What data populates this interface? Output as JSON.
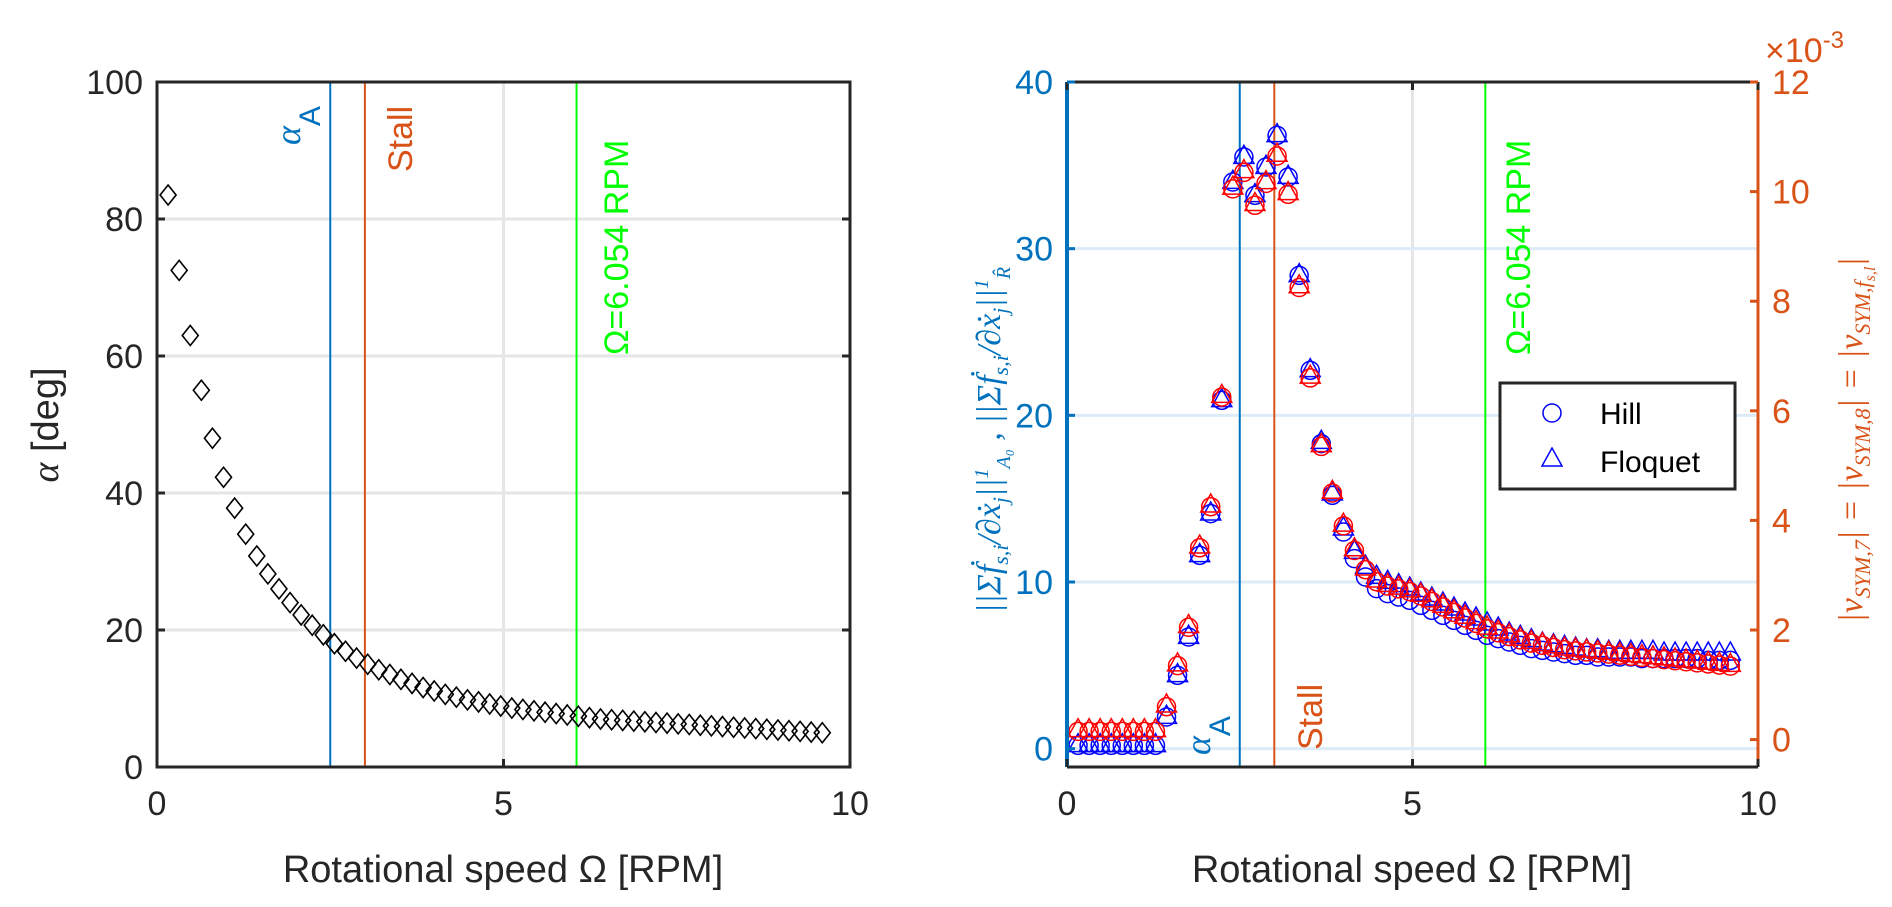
{
  "chart_data": [
    {
      "type": "scatter",
      "panel": "left",
      "title": "",
      "xlabel": "Rotational speed Ω [RPM]",
      "ylabel": "α [deg]",
      "xlim": [
        0,
        10
      ],
      "ylim": [
        0,
        100
      ],
      "xticks": [
        0,
        5,
        10
      ],
      "yticks": [
        0,
        20,
        40,
        60,
        80,
        100
      ],
      "grid": true,
      "marker": "diamond",
      "marker_color": "#000000",
      "series": [
        {
          "name": "alpha",
          "x": [
            0.16,
            0.32,
            0.48,
            0.64,
            0.8,
            0.96,
            1.12,
            1.28,
            1.44,
            1.6,
            1.76,
            1.92,
            2.08,
            2.24,
            2.4,
            2.56,
            2.72,
            2.88,
            3.04,
            3.2,
            3.36,
            3.52,
            3.68,
            3.84,
            4.0,
            4.16,
            4.32,
            4.48,
            4.64,
            4.8,
            4.96,
            5.12,
            5.28,
            5.44,
            5.6,
            5.76,
            5.92,
            6.08,
            6.24,
            6.4,
            6.56,
            6.72,
            6.88,
            7.04,
            7.2,
            7.36,
            7.52,
            7.68,
            7.84,
            8.0,
            8.16,
            8.32,
            8.48,
            8.64,
            8.8,
            8.96,
            9.12,
            9.28,
            9.44,
            9.6
          ],
          "y": [
            83.5,
            72.5,
            63.0,
            55.0,
            48.0,
            42.3,
            37.8,
            34.0,
            30.8,
            28.2,
            26.0,
            24.0,
            22.2,
            20.7,
            19.3,
            18.0,
            16.9,
            15.9,
            15.0,
            14.2,
            13.5,
            12.8,
            12.2,
            11.6,
            11.1,
            10.6,
            10.2,
            9.8,
            9.5,
            9.2,
            8.9,
            8.6,
            8.4,
            8.2,
            8.0,
            7.8,
            7.6,
            7.4,
            7.2,
            7.0,
            6.9,
            6.8,
            6.7,
            6.6,
            6.5,
            6.4,
            6.3,
            6.2,
            6.1,
            6.0,
            5.9,
            5.8,
            5.7,
            5.6,
            5.5,
            5.4,
            5.3,
            5.2,
            5.1,
            5.0
          ]
        }
      ],
      "vlines": [
        {
          "x": 2.5,
          "label": "α_A",
          "color": "#0072BD",
          "label_position": "top-left"
        },
        {
          "x": 3.0,
          "label": "Stall",
          "color": "#D95319",
          "label_position": "top-right"
        },
        {
          "x": 6.054,
          "label": "Ω=6.054 RPM",
          "color": "#00FF00",
          "label_position": "top-right"
        }
      ]
    },
    {
      "type": "scatter",
      "panel": "right",
      "title": "",
      "xlabel": "Rotational speed Ω [RPM]",
      "ylabel_left": "||Σ ḟ_s,i / ∂ẋ_j ||¹_A0 , ||Σ ḟ_s,i / ∂ẋ_j ||¹_R̂",
      "ylabel_right": "|v_SYM,7| = |v_SYM,8| = |v_SYM,f_s,l|",
      "right_axis_exponent": "×10⁻³",
      "xlim": [
        0,
        10
      ],
      "ylim_left": [
        -1.1,
        40
      ],
      "ylim_right": [
        -0.5,
        12
      ],
      "xticks": [
        0,
        5,
        10
      ],
      "yticks_left": [
        0,
        10,
        20,
        30,
        40
      ],
      "yticks_right": [
        0,
        2,
        4,
        6,
        8,
        10,
        12
      ],
      "grid": true,
      "legend": {
        "position": "right-middle",
        "entries": [
          {
            "label": "Hill",
            "marker": "circle"
          },
          {
            "label": "Floquet",
            "marker": "triangle"
          }
        ]
      },
      "series": [
        {
          "name": "Hill (left axis)",
          "axis": "left",
          "marker": "circle",
          "color": "#0000FF",
          "x": [
            0.16,
            0.32,
            0.48,
            0.64,
            0.8,
            0.96,
            1.12,
            1.28,
            1.44,
            1.6,
            1.76,
            1.92,
            2.08,
            2.24,
            2.4,
            2.56,
            2.72,
            2.88,
            3.04,
            3.2,
            3.36,
            3.52,
            3.68,
            3.84,
            4.0,
            4.16,
            4.32,
            4.48,
            4.64,
            4.8,
            4.96,
            5.12,
            5.28,
            5.44,
            5.6,
            5.76,
            5.92,
            6.08,
            6.24,
            6.4,
            6.56,
            6.72,
            6.88,
            7.04,
            7.2,
            7.36,
            7.52,
            7.68,
            7.84,
            8.0,
            8.16,
            8.32,
            8.48,
            8.64,
            8.8,
            8.96,
            9.12,
            9.28,
            9.44,
            9.6
          ],
          "y": [
            0.2,
            0.2,
            0.2,
            0.2,
            0.2,
            0.2,
            0.2,
            0.2,
            1.9,
            4.4,
            6.7,
            11.6,
            14.1,
            20.9,
            34.0,
            35.5,
            33.2,
            34.9,
            36.8,
            34.3,
            28.4,
            22.7,
            18.3,
            15.2,
            13.0,
            11.4,
            10.3,
            9.6,
            9.3,
            9.1,
            8.9,
            8.6,
            8.3,
            8.0,
            7.7,
            7.4,
            7.1,
            6.8,
            6.6,
            6.4,
            6.2,
            6.0,
            5.9,
            5.8,
            5.7,
            5.6,
            5.6,
            5.5,
            5.5,
            5.5,
            5.5,
            5.4,
            5.4,
            5.4,
            5.4,
            5.4,
            5.4,
            5.3,
            5.3,
            5.3
          ]
        },
        {
          "name": "Floquet (left axis)",
          "axis": "left",
          "marker": "triangle",
          "color": "#0000FF",
          "x": [
            0.16,
            0.32,
            0.48,
            0.64,
            0.8,
            0.96,
            1.12,
            1.28,
            1.44,
            1.6,
            1.76,
            1.92,
            2.08,
            2.24,
            2.4,
            2.56,
            2.72,
            2.88,
            3.04,
            3.2,
            3.36,
            3.52,
            3.68,
            3.84,
            4.0,
            4.16,
            4.32,
            4.48,
            4.64,
            4.8,
            4.96,
            5.12,
            5.28,
            5.44,
            5.6,
            5.76,
            5.92,
            6.08,
            6.24,
            6.4,
            6.56,
            6.72,
            6.88,
            7.04,
            7.2,
            7.36,
            7.52,
            7.68,
            7.84,
            8.0,
            8.16,
            8.32,
            8.48,
            8.64,
            8.8,
            8.96,
            9.12,
            9.28,
            9.44,
            9.6
          ],
          "y": [
            0.3,
            0.3,
            0.3,
            0.3,
            0.3,
            0.3,
            0.3,
            0.3,
            2.0,
            4.5,
            6.8,
            11.7,
            14.2,
            21.0,
            34.1,
            35.6,
            33.3,
            35.0,
            36.9,
            34.4,
            28.5,
            22.8,
            18.5,
            15.4,
            13.3,
            11.9,
            11.0,
            10.4,
            10.1,
            9.9,
            9.7,
            9.4,
            9.1,
            8.8,
            8.5,
            8.2,
            7.9,
            7.6,
            7.3,
            7.0,
            6.8,
            6.6,
            6.4,
            6.3,
            6.2,
            6.1,
            6.0,
            6.0,
            5.9,
            5.9,
            5.9,
            5.9,
            5.9,
            5.8,
            5.8,
            5.8,
            5.8,
            5.8,
            5.8,
            5.8
          ]
        },
        {
          "name": "Hill (right axis)",
          "axis": "right",
          "marker": "circle",
          "color": "#FF0000",
          "x": [
            0.16,
            0.32,
            0.48,
            0.64,
            0.8,
            0.96,
            1.12,
            1.28,
            1.44,
            1.6,
            1.76,
            1.92,
            2.08,
            2.24,
            2.4,
            2.56,
            2.72,
            2.88,
            3.04,
            3.2,
            3.36,
            3.52,
            3.68,
            3.84,
            4.0,
            4.16,
            4.32,
            4.48,
            4.64,
            4.8,
            4.96,
            5.12,
            5.28,
            5.44,
            5.6,
            5.76,
            5.92,
            6.08,
            6.24,
            6.4,
            6.56,
            6.72,
            6.88,
            7.04,
            7.2,
            7.36,
            7.52,
            7.68,
            7.84,
            8.0,
            8.16,
            8.32,
            8.48,
            8.64,
            8.8,
            8.96,
            9.12,
            9.28,
            9.44,
            9.6
          ],
          "y": [
            0.15,
            0.15,
            0.15,
            0.15,
            0.15,
            0.15,
            0.15,
            0.15,
            0.6,
            1.35,
            2.05,
            3.5,
            4.25,
            6.25,
            10.05,
            10.35,
            9.75,
            10.15,
            10.65,
            9.95,
            8.25,
            6.6,
            5.35,
            4.5,
            3.9,
            3.45,
            3.1,
            2.88,
            2.8,
            2.75,
            2.7,
            2.62,
            2.52,
            2.42,
            2.32,
            2.22,
            2.12,
            2.02,
            1.95,
            1.88,
            1.82,
            1.76,
            1.72,
            1.68,
            1.64,
            1.62,
            1.6,
            1.58,
            1.56,
            1.54,
            1.52,
            1.5,
            1.48,
            1.46,
            1.44,
            1.42,
            1.4,
            1.38,
            1.36,
            1.34
          ]
        },
        {
          "name": "Floquet (right axis)",
          "axis": "right",
          "marker": "triangle",
          "color": "#FF0000",
          "x": [
            0.16,
            0.32,
            0.48,
            0.64,
            0.8,
            0.96,
            1.12,
            1.28,
            1.44,
            1.6,
            1.76,
            1.92,
            2.08,
            2.24,
            2.4,
            2.56,
            2.72,
            2.88,
            3.04,
            3.2,
            3.36,
            3.52,
            3.68,
            3.84,
            4.0,
            4.16,
            4.32,
            4.48,
            4.64,
            4.8,
            4.96,
            5.12,
            5.28,
            5.44,
            5.6,
            5.76,
            5.92,
            6.08,
            6.24,
            6.4,
            6.56,
            6.72,
            6.88,
            7.04,
            7.2,
            7.36,
            7.52,
            7.68,
            7.84,
            8.0,
            8.16,
            8.32,
            8.48,
            8.64,
            8.8,
            8.96,
            9.12,
            9.28,
            9.44,
            9.6
          ],
          "y": [
            0.2,
            0.2,
            0.2,
            0.2,
            0.2,
            0.2,
            0.2,
            0.2,
            0.65,
            1.4,
            2.1,
            3.55,
            4.3,
            6.3,
            10.1,
            10.4,
            9.8,
            10.2,
            10.7,
            10.0,
            8.3,
            6.65,
            5.4,
            4.55,
            3.95,
            3.5,
            3.15,
            2.93,
            2.85,
            2.8,
            2.75,
            2.67,
            2.57,
            2.47,
            2.37,
            2.27,
            2.17,
            2.07,
            2.0,
            1.93,
            1.87,
            1.81,
            1.77,
            1.73,
            1.69,
            1.67,
            1.65,
            1.63,
            1.61,
            1.59,
            1.57,
            1.55,
            1.53,
            1.51,
            1.49,
            1.47,
            1.45,
            1.43,
            1.41,
            1.39
          ]
        }
      ],
      "vlines": [
        {
          "x": 2.5,
          "label": "α_A",
          "color": "#0072BD",
          "label_position": "bottom-left"
        },
        {
          "x": 3.0,
          "label": "Stall",
          "color": "#D95319",
          "label_position": "bottom-right"
        },
        {
          "x": 6.054,
          "label": "Ω=6.054 RPM",
          "color": "#00FF00",
          "label_position": "top-right"
        }
      ]
    }
  ],
  "colors": {
    "axis_dark": "#262626",
    "grid": "#E6E6E6",
    "grid_blue": "#DCEBF7",
    "left_axis_blue": "#0072BD",
    "right_axis_orange": "#D95319",
    "green_line": "#00FF00",
    "series_blue": "#0000FF",
    "series_red": "#FF0000"
  },
  "labels": {
    "left_xlabel": "Rotational speed Ω [RPM]",
    "left_ylabel_alpha": "α",
    "left_ylabel_unit": " [deg]",
    "right_xlabel": "Rotational speed Ω [RPM]",
    "alpha_symbol": "α",
    "alpha_sub": "A",
    "stall": "Stall",
    "omega_line": "Ω=6.054 RPM",
    "right_exp_base": "×10",
    "right_exp_power": "-3",
    "legend_hill": "Hill",
    "legend_floquet": "Floquet",
    "right_ylabel_left_part1": "||Σḟ",
    "right_ylabel_left_sub1": "s,i",
    "right_ylabel_left_part2": "/∂ẋ",
    "right_ylabel_left_sub2": "j",
    "right_ylabel_left_part3": "||",
    "right_ylabel_left_sup3": "1",
    "right_ylabel_left_sub3": "A₀",
    "right_ylabel_left_sep": " , ",
    "right_ylabel_left_sub4": "R̂",
    "right_ylabel_right": "|v",
    "right_ylabel_right_sub1": "SYM,7",
    "right_ylabel_right_eq": "| = |v",
    "right_ylabel_right_sub2": "SYM,8",
    "right_ylabel_right_sub3": "SYM,f",
    "right_ylabel_right_sub3b": "s,l"
  }
}
